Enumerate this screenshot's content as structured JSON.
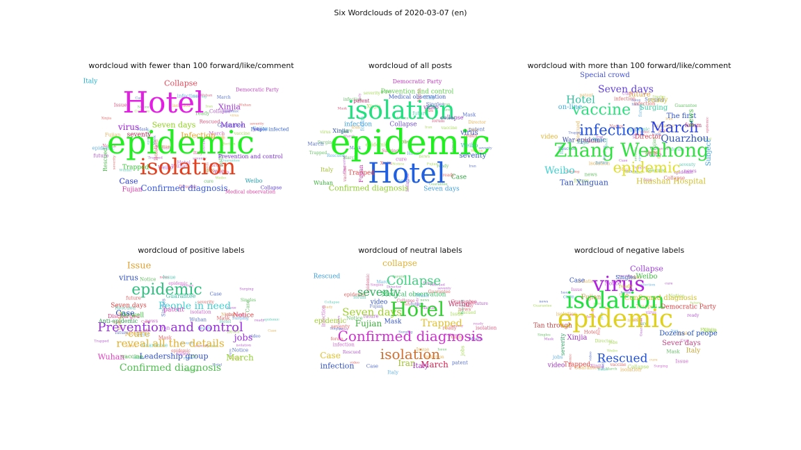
{
  "figure": {
    "title": "Six Wordclouds of 2020-03-07 (en)"
  },
  "panels": [
    {
      "title": "wordcloud with fewer than 100 forward/like/comment",
      "words": [
        {
          "t": "epidemic",
          "c": "#22ee22"
        },
        {
          "t": "Hotel",
          "c": "#e21ee2"
        },
        {
          "t": "isolation",
          "c": "#e2401e"
        },
        {
          "t": "Confirmed diagnosis",
          "c": "#3a5ae8"
        },
        {
          "t": "Seven days",
          "c": "#90d020"
        },
        {
          "t": "Collapse",
          "c": "#e84a5a"
        },
        {
          "t": "virus",
          "c": "#a020e8"
        },
        {
          "t": "Infection",
          "c": "#e8a020"
        },
        {
          "t": "March",
          "c": "#7a30d0"
        },
        {
          "t": "Case",
          "c": "#2a3ad0"
        },
        {
          "t": "Xinjia",
          "c": "#9a30d0"
        },
        {
          "t": "Prevention and control",
          "c": "#7a30d0"
        },
        {
          "t": "Weibo",
          "c": "#20a0b0"
        },
        {
          "t": "Fujian",
          "c": "#d030a0"
        },
        {
          "t": "Trapped",
          "c": "#30c030"
        },
        {
          "t": "seventy",
          "c": "#c02050"
        },
        {
          "t": "Italy",
          "c": "#20b0d0"
        },
        {
          "t": "Rescued",
          "c": "#50c050"
        },
        {
          "t": "Democratic Party",
          "c": "#c040c0"
        },
        {
          "t": "People infected",
          "c": "#3060d0"
        },
        {
          "t": "Medical observation",
          "c": "#e040a0"
        },
        {
          "t": "Collapse",
          "c": "#6040e0"
        }
      ]
    },
    {
      "title": "wordcloud of all posts",
      "words": [
        {
          "t": "epidemic",
          "c": "#22ee22"
        },
        {
          "t": "Hotel",
          "c": "#2060e0"
        },
        {
          "t": "isolation",
          "c": "#20e080"
        },
        {
          "t": "Confirmed diagnosis",
          "c": "#90d030"
        },
        {
          "t": "Prevention and control",
          "c": "#60d050"
        },
        {
          "t": "Democratic Party",
          "c": "#c040c0"
        },
        {
          "t": "Medical observation",
          "c": "#4060d0"
        },
        {
          "t": "infection",
          "c": "#40a0e0"
        },
        {
          "t": "Collapse",
          "c": "#7050d0"
        },
        {
          "t": "collapse",
          "c": "#9040c0"
        },
        {
          "t": "virus",
          "c": "#4050d0"
        },
        {
          "t": "seventy",
          "c": "#3050c0"
        },
        {
          "t": "Case",
          "c": "#30a040"
        },
        {
          "t": "Seven days",
          "c": "#40a0e0"
        },
        {
          "t": "Trapped",
          "c": "#e04040"
        },
        {
          "t": "Xinjia",
          "c": "#3050b0"
        },
        {
          "t": "Italy",
          "c": "#a0c030"
        },
        {
          "t": "Fujian",
          "c": "#c030a0"
        },
        {
          "t": "Wuhan",
          "c": "#40b040"
        },
        {
          "t": "video",
          "c": "#a030c0"
        },
        {
          "t": "patent",
          "c": "#c02060"
        },
        {
          "t": "Weibo",
          "c": "#40c0a0"
        }
      ]
    },
    {
      "title": "wordcloud with more than 100 forward/like/comment",
      "words": [
        {
          "t": "Zhang Wenhong",
          "c": "#30e040"
        },
        {
          "t": "infection",
          "c": "#2050e0"
        },
        {
          "t": "March",
          "c": "#2a40e0"
        },
        {
          "t": "vaccine",
          "c": "#30e080"
        },
        {
          "t": "epidemic",
          "c": "#e0e030"
        },
        {
          "t": "Seven days",
          "c": "#6040e0"
        },
        {
          "t": "Hotel",
          "c": "#30c0a0"
        },
        {
          "t": "Quarzhou",
          "c": "#3050c0"
        },
        {
          "t": "Weibo",
          "c": "#40d0d0"
        },
        {
          "t": "Tan Xinguan",
          "c": "#3050c0"
        },
        {
          "t": "Huashan Hospital",
          "c": "#d0c030"
        },
        {
          "t": "Special crowd",
          "c": "#4050e0"
        },
        {
          "t": "Director",
          "c": "#e04050"
        },
        {
          "t": "The first",
          "c": "#3050c0"
        },
        {
          "t": "news",
          "c": "#40c040"
        },
        {
          "t": "video",
          "c": "#e0b030"
        },
        {
          "t": "Surging",
          "c": "#40d0a0"
        },
        {
          "t": "War epidemic",
          "c": "#3040b0"
        },
        {
          "t": "future",
          "c": "#e0a030"
        },
        {
          "t": "ready",
          "c": "#d0c030"
        },
        {
          "t": "on-line",
          "c": "#40b0e0"
        },
        {
          "t": "Subject",
          "c": "#40a0e0"
        },
        {
          "t": "forum",
          "c": "#c04070"
        }
      ]
    },
    {
      "title": "wordcloud of positive labels",
      "words": [
        {
          "t": "Prevention and control",
          "c": "#9a30e0"
        },
        {
          "t": "epidemic",
          "c": "#30c080"
        },
        {
          "t": "reveal all the details",
          "c": "#e0b030"
        },
        {
          "t": "Confirmed diagnosis",
          "c": "#50c050"
        },
        {
          "t": "People in need",
          "c": "#40d0d0"
        },
        {
          "t": "cure",
          "c": "#e0b030"
        },
        {
          "t": "Issue",
          "c": "#e0a030"
        },
        {
          "t": "Leadership group",
          "c": "#3050c0"
        },
        {
          "t": "jobs",
          "c": "#9a30e0"
        },
        {
          "t": "March",
          "c": "#90d030"
        },
        {
          "t": "Case",
          "c": "#2040c0"
        },
        {
          "t": "virus",
          "c": "#3050c0"
        },
        {
          "t": "Discharged",
          "c": "#e04080"
        },
        {
          "t": "Do well",
          "c": "#30c030"
        },
        {
          "t": "Seven days",
          "c": "#e04040"
        },
        {
          "t": "patent",
          "c": "#e040c0"
        },
        {
          "t": "Notice",
          "c": "#e04040"
        },
        {
          "t": "Wuhan",
          "c": "#e040c0"
        },
        {
          "t": "vaccine",
          "c": "#40b040"
        },
        {
          "t": "Guarantee",
          "c": "#30c0a0"
        },
        {
          "t": "Anti-epidemic",
          "c": "#30a050"
        }
      ]
    },
    {
      "title": "wordcloud of neutral labels",
      "words": [
        {
          "t": "Confirmed diagnosis",
          "c": "#d030d0"
        },
        {
          "t": "Hotel",
          "c": "#30d030"
        },
        {
          "t": "isolation",
          "c": "#d07030"
        },
        {
          "t": "Seven days",
          "c": "#a0d030"
        },
        {
          "t": "Collapse",
          "c": "#40d080"
        },
        {
          "t": "collapse",
          "c": "#e0b030"
        },
        {
          "t": "seventy",
          "c": "#30b060"
        },
        {
          "t": "Trapped",
          "c": "#e0c030"
        },
        {
          "t": "Case",
          "c": "#e0c030"
        },
        {
          "t": "infection",
          "c": "#3050c0"
        },
        {
          "t": "March",
          "c": "#d02050"
        },
        {
          "t": "Iran",
          "c": "#a0c030"
        },
        {
          "t": "epidemic",
          "c": "#a0d030"
        },
        {
          "t": "Fujian",
          "c": "#40b040"
        },
        {
          "t": "Medical observation",
          "c": "#30c060"
        },
        {
          "t": "Rescued",
          "c": "#40a0e0"
        },
        {
          "t": "video",
          "c": "#3050c0"
        },
        {
          "t": "Weibo",
          "c": "#c04070"
        },
        {
          "t": "Italy",
          "c": "#a030c0"
        },
        {
          "t": "Mask",
          "c": "#3050c0"
        }
      ]
    },
    {
      "title": "wordcloud of negative labels",
      "words": [
        {
          "t": "epidemic",
          "c": "#e0d020"
        },
        {
          "t": "isolation",
          "c": "#20e040"
        },
        {
          "t": "virus",
          "c": "#b020e0"
        },
        {
          "t": "Rescued",
          "c": "#2050e0"
        },
        {
          "t": "Confirmed diagnosis",
          "c": "#d0c030"
        },
        {
          "t": "Collapse",
          "c": "#a040e0"
        },
        {
          "t": "Weibo",
          "c": "#40c040"
        },
        {
          "t": "Dozens of peope",
          "c": "#2050c0"
        },
        {
          "t": "Sever days",
          "c": "#c04080"
        },
        {
          "t": "Democratic Party",
          "c": "#e04040"
        },
        {
          "t": "Italy",
          "c": "#c0a030"
        },
        {
          "t": "Xinjia",
          "c": "#a030c0"
        },
        {
          "t": "Case",
          "c": "#3050c0"
        },
        {
          "t": "video",
          "c": "#a030c0"
        },
        {
          "t": "Trapped",
          "c": "#e04040"
        },
        {
          "t": "Fujian",
          "c": "#c09030"
        },
        {
          "t": "Tan through",
          "c": "#c04040"
        },
        {
          "t": "severity",
          "c": "#30a060"
        },
        {
          "t": "Singles",
          "c": "#3050c0"
        },
        {
          "t": "ready",
          "c": "#d0c030"
        }
      ]
    }
  ]
}
